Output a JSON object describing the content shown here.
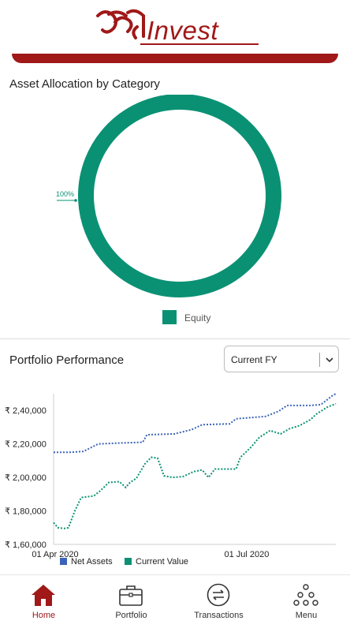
{
  "app": {
    "brand_script": "शुभ",
    "brand_word": "Invest",
    "brand_color": "#a01818"
  },
  "allocation": {
    "title": "Asset Allocation by Category",
    "slice_label": "100%",
    "slices": [
      {
        "name": "Equity",
        "percent": 100,
        "color": "#0a9173"
      }
    ]
  },
  "performance": {
    "title": "Portfolio Performance",
    "period_selected": "Current FY",
    "chevron_icon": "chevron-down-icon"
  },
  "chart_data": {
    "type": "line",
    "x_labels": [
      "01 Apr 2020",
      "01 Jul 2020"
    ],
    "y_ticks": [
      "₹ 1,60,000",
      "₹ 1,80,000",
      "₹ 2,00,000",
      "₹ 2,20,000",
      "₹ 2,40,000"
    ],
    "ylim": [
      160000,
      250000
    ],
    "xlim": [
      "2020-04-01",
      "2020-08-12"
    ],
    "series": [
      {
        "name": "Net Assets",
        "color": "#3b64b8",
        "points": [
          [
            "2020-04-01",
            215000
          ],
          [
            "2020-04-08",
            215000
          ],
          [
            "2020-04-15",
            215500
          ],
          [
            "2020-04-22",
            220000
          ],
          [
            "2020-05-01",
            220500
          ],
          [
            "2020-05-13",
            221000
          ],
          [
            "2020-05-15",
            225500
          ],
          [
            "2020-05-28",
            226000
          ],
          [
            "2020-06-05",
            228500
          ],
          [
            "2020-06-10",
            231500
          ],
          [
            "2020-06-23",
            232000
          ],
          [
            "2020-06-26",
            235000
          ],
          [
            "2020-07-10",
            236500
          ],
          [
            "2020-07-16",
            239500
          ],
          [
            "2020-07-20",
            243000
          ],
          [
            "2020-07-31",
            243000
          ],
          [
            "2020-08-05",
            243500
          ],
          [
            "2020-08-10",
            248500
          ],
          [
            "2020-08-12",
            250000
          ]
        ]
      },
      {
        "name": "Current Value",
        "color": "#0a9173",
        "points": [
          [
            "2020-04-01",
            173000
          ],
          [
            "2020-04-03",
            170000
          ],
          [
            "2020-04-06",
            169500
          ],
          [
            "2020-04-08",
            170000
          ],
          [
            "2020-04-11",
            180000
          ],
          [
            "2020-04-14",
            188000
          ],
          [
            "2020-04-20",
            189000
          ],
          [
            "2020-04-23",
            192000
          ],
          [
            "2020-04-27",
            197000
          ],
          [
            "2020-05-02",
            197500
          ],
          [
            "2020-05-05",
            194000
          ],
          [
            "2020-05-07",
            197000
          ],
          [
            "2020-05-10",
            199500
          ],
          [
            "2020-05-14",
            208000
          ],
          [
            "2020-05-17",
            212000
          ],
          [
            "2020-05-20",
            211500
          ],
          [
            "2020-05-23",
            201000
          ],
          [
            "2020-05-27",
            200000
          ],
          [
            "2020-06-01",
            200500
          ],
          [
            "2020-06-06",
            203500
          ],
          [
            "2020-06-10",
            204500
          ],
          [
            "2020-06-13",
            200000
          ],
          [
            "2020-06-16",
            205000
          ],
          [
            "2020-06-26",
            205000
          ],
          [
            "2020-06-28",
            212000
          ],
          [
            "2020-07-03",
            218000
          ],
          [
            "2020-07-07",
            224000
          ],
          [
            "2020-07-12",
            228000
          ],
          [
            "2020-07-17",
            226000
          ],
          [
            "2020-07-21",
            229000
          ],
          [
            "2020-07-26",
            231000
          ],
          [
            "2020-07-31",
            234500
          ],
          [
            "2020-08-03",
            238000
          ],
          [
            "2020-08-08",
            242000
          ],
          [
            "2020-08-12",
            244000
          ]
        ]
      }
    ],
    "legend": [
      {
        "label": "Net Assets",
        "color": "#3b64b8"
      },
      {
        "label": "Current Value",
        "color": "#0a9173"
      }
    ],
    "legend_position": "bottom-left"
  },
  "nav": {
    "items": [
      {
        "label": "Home",
        "icon": "home-icon",
        "active": true
      },
      {
        "label": "Portfolio",
        "icon": "briefcase-icon",
        "active": false
      },
      {
        "label": "Transactions",
        "icon": "exchange-icon",
        "active": false
      },
      {
        "label": "Menu",
        "icon": "menu-dots-icon",
        "active": false
      }
    ]
  }
}
